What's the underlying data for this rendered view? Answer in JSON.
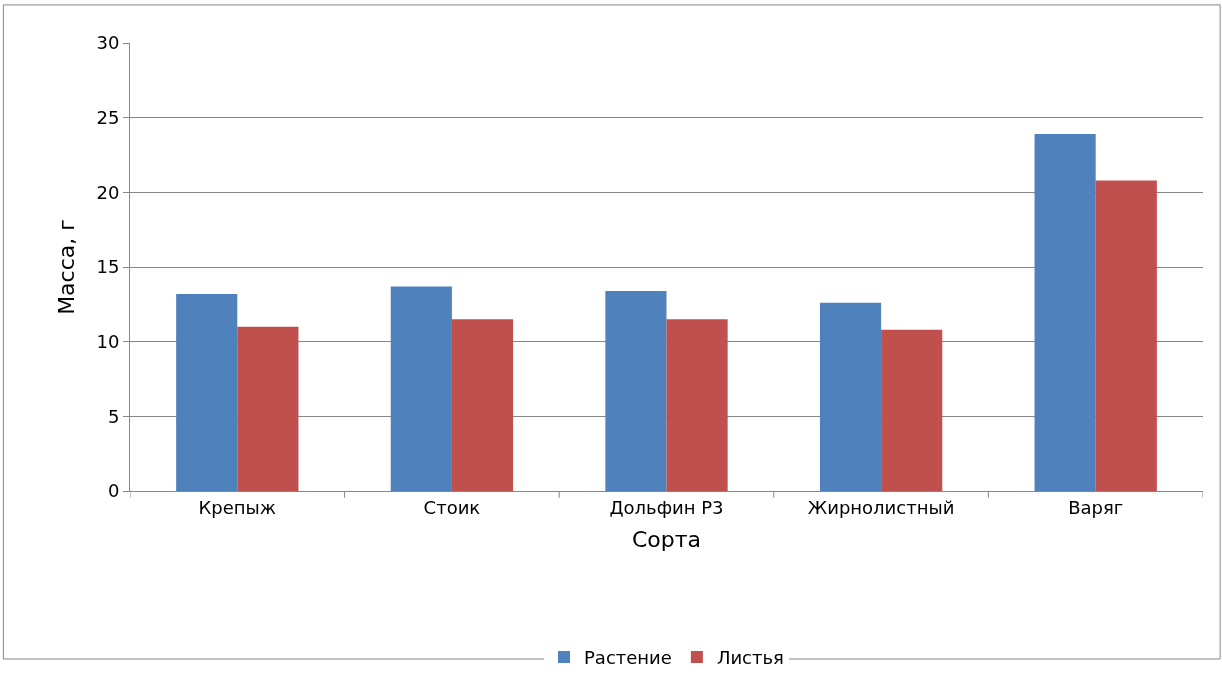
{
  "chart_data": {
    "type": "bar",
    "xlabel": "Сорта",
    "ylabel": "Масса, г",
    "categories": [
      "Крепыж",
      "Стоик",
      "Дольфин Р3",
      "Жирнолистный",
      "Варяг"
    ],
    "series": [
      {
        "name": "Растение",
        "color": "#4f81bd",
        "values": [
          13.2,
          13.7,
          13.4,
          12.6,
          23.9
        ]
      },
      {
        "name": "Листья",
        "color": "#c0504d",
        "values": [
          11.0,
          11.5,
          11.5,
          10.8,
          20.8
        ]
      }
    ],
    "ylim": [
      0,
      30
    ],
    "yticks": [
      0,
      5,
      10,
      15,
      20,
      25,
      30
    ],
    "grid": "y",
    "legend": "bottom"
  }
}
